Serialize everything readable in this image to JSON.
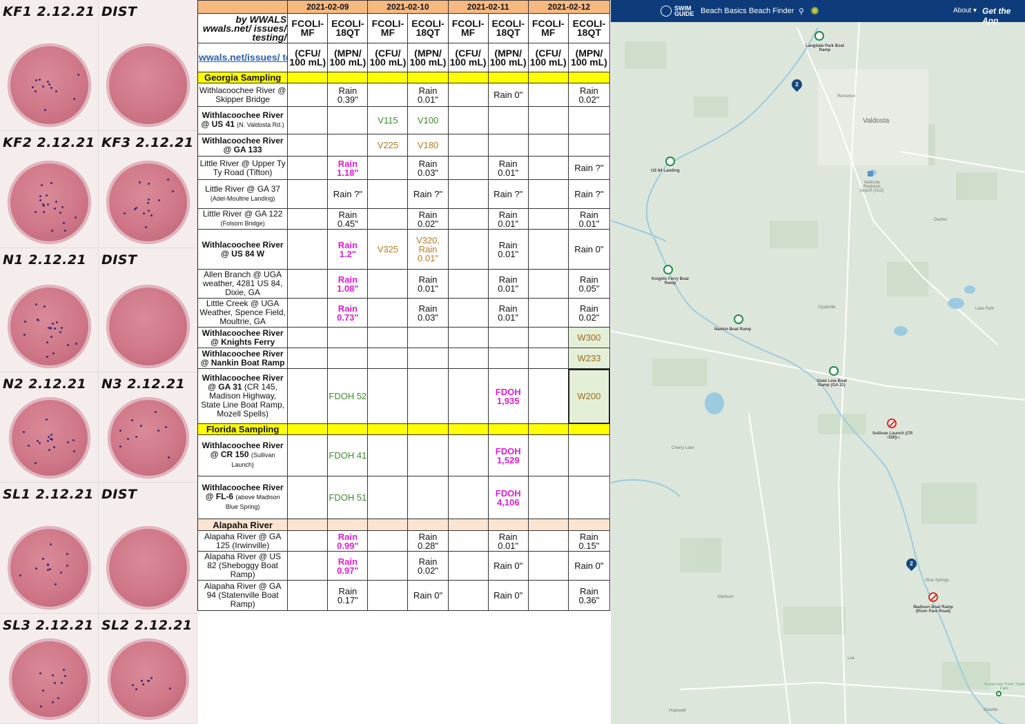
{
  "photos": [
    {
      "label": "KF1 2.12.21"
    },
    {
      "label": "DIST"
    },
    {
      "label": "KF2 2.12.21"
    },
    {
      "label": "KF3 2.12.21"
    },
    {
      "label": "N1 2.12.21"
    },
    {
      "label": "DIST"
    },
    {
      "label": "N2 2.12.21"
    },
    {
      "label": "N3 2.12.21"
    },
    {
      "label": "SL1 2.12.21"
    },
    {
      "label": "DIST"
    },
    {
      "label": "SL3 2.12.21"
    },
    {
      "label": "SL2 2.12.21"
    }
  ],
  "table": {
    "dates": [
      "2021-02-09",
      "2021-02-10",
      "2021-02-11",
      "2021-02-12"
    ],
    "by_prefix": "by WWALS",
    "by_rest": "wwals.net/ issues/ testing/",
    "link_text": "wwals.net/issues/ testing/",
    "col_fcoli": "FCOLI-MF",
    "col_ecoli": "ECOLI-18QT",
    "unit_cfu": "(CFU/ 100 mL)",
    "unit_mpn": "(MPN/ 100 mL)",
    "section_georgia": "Georgia Sampling",
    "section_florida": "Florida Sampling",
    "section_alapaha": "Alapaha River",
    "rows": [
      {
        "site": "Withlacoochee River @ Skipper Bridge",
        "sub": "",
        "bold": false,
        "cells": [
          "",
          "Rain 0.39\"",
          "",
          "Rain 0.01\"",
          "",
          "Rain 0\"",
          "",
          "Rain 0.02\""
        ]
      },
      {
        "site": "Withlacoochee River @ US 41",
        "sub": "(N. Valdosta Rd.)",
        "bold": true,
        "cells": [
          "",
          "",
          "V115",
          "V100",
          "",
          "",
          "",
          ""
        ]
      },
      {
        "site": "Withlacoochee River @ GA 133",
        "sub": "",
        "bold": true,
        "cells": [
          "",
          "",
          "V225",
          "V180",
          "",
          "",
          "",
          ""
        ]
      },
      {
        "site": "Little River @ Upper Ty Ty Road (Tifton)",
        "sub": "",
        "bold": false,
        "cells": [
          "",
          "Rain 1.18\"",
          "",
          "Rain 0.03\"",
          "",
          "Rain 0.01\"",
          "",
          "Rain ?\""
        ]
      },
      {
        "site": "Little River @ GA 37",
        "sub": "(Adel-Moultrie Landing)",
        "bold": false,
        "cells": [
          "",
          "Rain ?\"",
          "",
          "Rain ?\"",
          "",
          "Rain ?\"",
          "",
          "Rain ?\""
        ]
      },
      {
        "site": "Little River @ GA 122",
        "sub": "(Folsom Bridge)",
        "bold": false,
        "cells": [
          "",
          "Rain 0.45\"",
          "",
          "Rain 0.02\"",
          "",
          "Rain 0.01\"",
          "",
          "Rain 0.01\""
        ]
      },
      {
        "site": "Withlacoochee River @ US 84 W",
        "sub": "",
        "bold": true,
        "cells": [
          "",
          "Rain 1.2\"",
          "V325",
          "V320, Rain 0.01\"",
          "",
          "Rain 0.01\"",
          "",
          "Rain 0\""
        ]
      },
      {
        "site": "Allen Branch @ UGA weather, 4281 US 84, Dixie, GA",
        "sub": "",
        "bold": false,
        "cells": [
          "",
          "Rain 1.08\"",
          "",
          "Rain 0.01\"",
          "",
          "Rain 0.01\"",
          "",
          "Rain 0.05\""
        ]
      },
      {
        "site": "Little Creek @ UGA Weather, Spence Field, Moultrie, GA",
        "sub": "",
        "bold": false,
        "cells": [
          "",
          "Rain 0.73\"",
          "",
          "Rain 0.03\"",
          "",
          "Rain 0.01\"",
          "",
          "Rain 0.02\""
        ]
      },
      {
        "site": "Withlacoochee River @ Knights Ferry",
        "sub": "",
        "bold": true,
        "cells": [
          "",
          "",
          "",
          "",
          "",
          "",
          "",
          "W300"
        ]
      },
      {
        "site": "Withlacoochee River @ Nankin Boat Ramp",
        "sub": "",
        "bold": true,
        "cells": [
          "",
          "",
          "",
          "",
          "",
          "",
          "",
          "W233"
        ]
      },
      {
        "site": "Withlacoochee River @ GA 31",
        "sub": "(CR 145, Madison Highway, State Line Boat Ramp, Mozell Spells)",
        "bold": true,
        "cells": [
          "",
          "FDOH 52",
          "",
          "",
          "",
          "FDOH 1,935",
          "",
          "W200"
        ]
      },
      {
        "site": "Withlacoochee River @ CR 150",
        "sub": "(Sullivan Launch)",
        "bold": true,
        "cells": [
          "",
          "FDOH 41",
          "",
          "",
          "",
          "FDOH 1,529",
          "",
          ""
        ]
      },
      {
        "site": "Withlacoochee River @ FL-6",
        "sub": "(above Madison Blue Spring)",
        "bold": true,
        "cells": [
          "",
          "FDOH 51",
          "",
          "",
          "",
          "FDOH 4,106",
          "",
          ""
        ]
      },
      {
        "site": "Alapaha River @ GA 125 (Irwinville)",
        "sub": "",
        "bold": false,
        "cells": [
          "",
          "Rain 0.99\"",
          "",
          "Rain 0.28\"",
          "",
          "Rain 0.01\"",
          "",
          "Rain 0.15\""
        ]
      },
      {
        "site": "Alapaha River @ US 82 (Sheboggy Boat Ramp)",
        "sub": "",
        "bold": false,
        "cells": [
          "",
          "Rain 0.97\"",
          "",
          "Rain 0.02\"",
          "",
          "Rain 0\"",
          "",
          "Rain 0\""
        ]
      },
      {
        "site": "Alapaha River @ GA 94 (Statenville Boat Ramp)",
        "sub": "",
        "bold": false,
        "cells": [
          "",
          "Rain 0.17\"",
          "",
          "Rain 0\"",
          "",
          "Rain 0\"",
          "",
          "Rain 0.36\""
        ]
      }
    ]
  },
  "map": {
    "logo_line1": "SWIM",
    "logo_line2": "GUIDE",
    "nav_beach_basics": "Beach Basics",
    "nav_beach_finder": "Beach Finder",
    "nav_about": "About",
    "nav_app": "Get the App",
    "places": [
      "Valdosta",
      "Remerton",
      "Dasher",
      "Clyattville",
      "Lake Park",
      "Pinetta",
      "Cherry Lake",
      "Madison",
      "Blue Springs",
      "Lee",
      "Hopewell",
      "Ellaville",
      "Valdosta Regional Airport (VLD)"
    ],
    "sites": [
      "Langdale Park Boat Ramp",
      "US 84 Landing",
      "Knights Ferry Boat Ramp",
      "Nankin Boat Ramp",
      "State Line Boat Ramp (GA 31)",
      "Sullivan Launch (CR 150)",
      "Madison Boat Ramp (River Park Road)",
      "Suwannee River State Park"
    ],
    "clusters": [
      "2",
      "2"
    ],
    "colors": {
      "header": "#0e3c7a",
      "good": "#1d8b44",
      "bad": "#e0281e"
    }
  }
}
